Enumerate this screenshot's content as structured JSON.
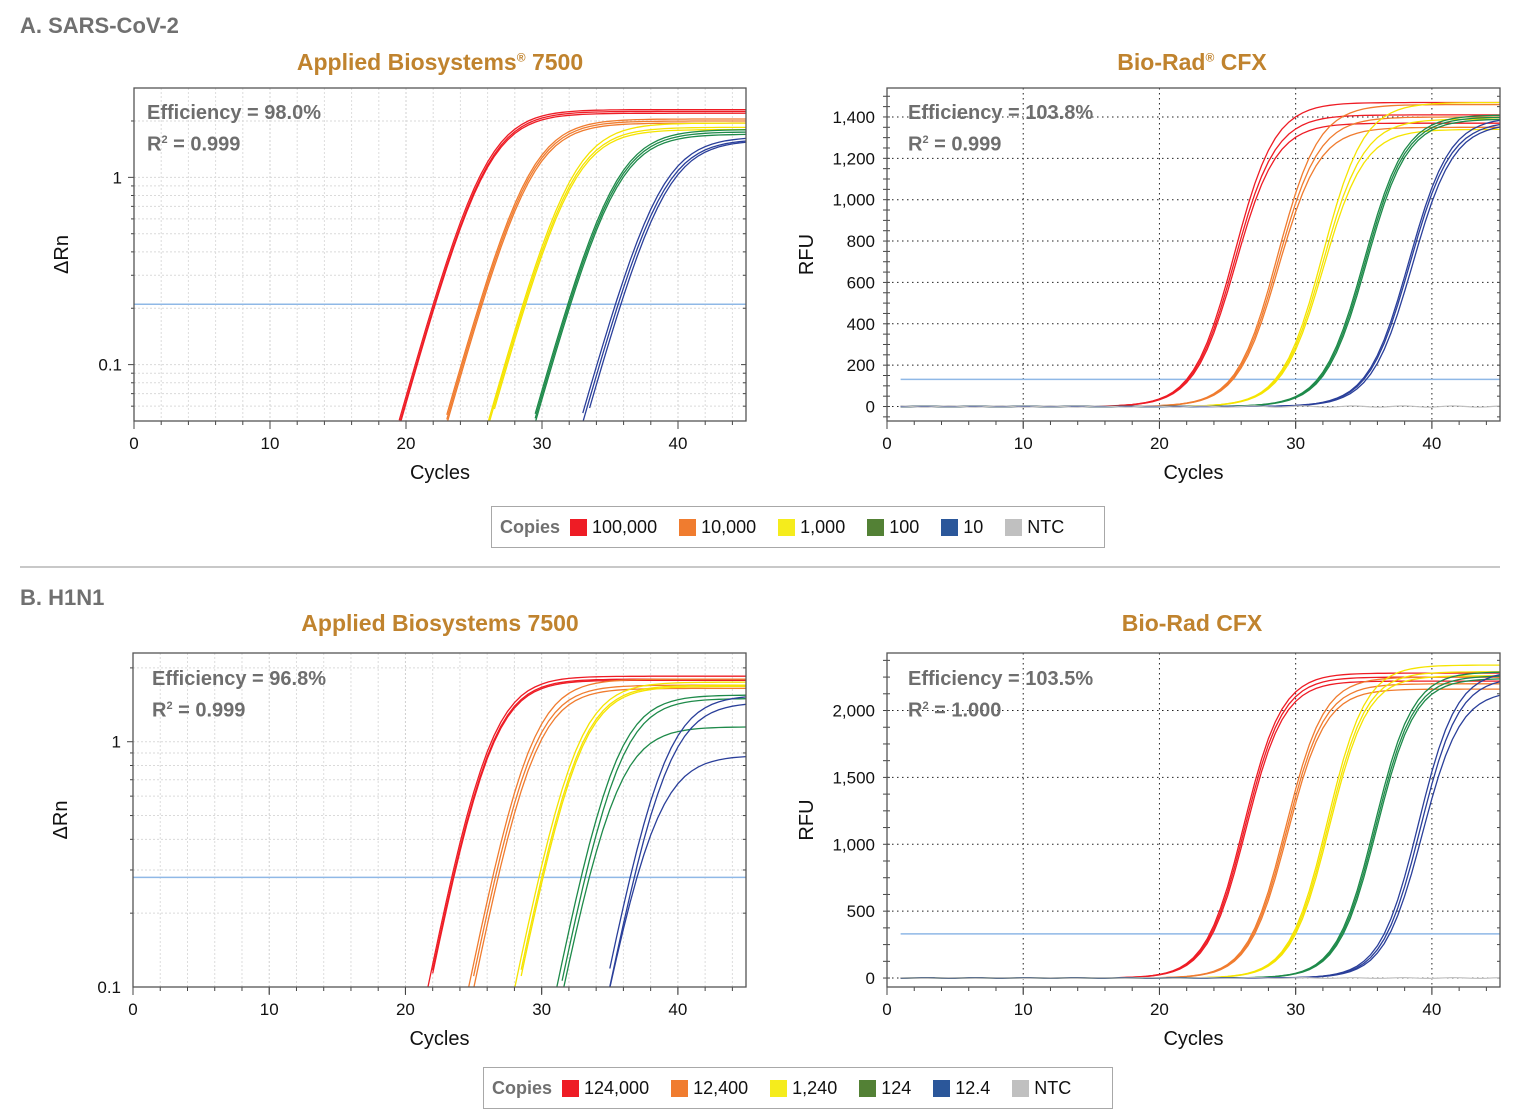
{
  "sections": [
    {
      "label": "A. SARS-CoV-2"
    },
    {
      "label": "B. H1N1"
    }
  ],
  "legends": [
    {
      "title": "Copies",
      "items": [
        {
          "label": "100,000",
          "color": "#ee1c25"
        },
        {
          "label": "10,000",
          "color": "#f07c2f"
        },
        {
          "label": "1,000",
          "color": "#f5ec1c"
        },
        {
          "label": "100",
          "color": "#538135"
        },
        {
          "label": "10",
          "color": "#2b579a"
        },
        {
          "label": "NTC",
          "color": "#c0c0c0"
        }
      ]
    },
    {
      "title": "Copies",
      "items": [
        {
          "label": "124,000",
          "color": "#ee1c25"
        },
        {
          "label": "12,400",
          "color": "#f07c2f"
        },
        {
          "label": "1,240",
          "color": "#f5ec1c"
        },
        {
          "label": "124",
          "color": "#538135"
        },
        {
          "label": "12.4",
          "color": "#2b579a"
        },
        {
          "label": "NTC",
          "color": "#c0c0c0"
        }
      ]
    }
  ],
  "chart_data": [
    {
      "type": "line",
      "title": "Applied Biosystems",
      "title_mark": "®",
      "title_suffix": " 7500",
      "efficiency": "Efficiency = 98.0%",
      "r2_label": "R",
      "r2_value": " = 0.999",
      "xlabel": "Cycles",
      "ylabel": "ΔRn",
      "yscale": "log",
      "xlim": [
        0,
        45
      ],
      "ylim": [
        0.05,
        3
      ],
      "xticks": [
        "0",
        "10",
        "20",
        "30",
        "40"
      ],
      "yticks": [
        "0.1",
        "1"
      ],
      "threshold": 0.21,
      "series": [
        {
          "color": "#ee1c25",
          "ct": [
            22.0,
            22.1,
            22.15
          ],
          "plateau": [
            2.3,
            2.25,
            2.2
          ]
        },
        {
          "color": "#f07c2f",
          "ct": [
            25.4,
            25.5,
            25.6
          ],
          "plateau": [
            2.05,
            2.0,
            1.95
          ]
        },
        {
          "color": "#f5e400",
          "ct": [
            28.6,
            28.7,
            28.8
          ],
          "plateau": [
            1.95,
            1.85,
            1.8
          ]
        },
        {
          "color": "#1e8a4a",
          "ct": [
            31.9,
            32.0,
            32.1
          ],
          "plateau": [
            1.8,
            1.75,
            1.7
          ]
        },
        {
          "color": "#2a3f9a",
          "ct": [
            35.4,
            35.6,
            35.8
          ],
          "plateau": [
            1.65,
            1.6,
            1.58
          ]
        }
      ]
    },
    {
      "type": "line",
      "title": "Bio-Rad",
      "title_mark": "®",
      "title_suffix": " CFX",
      "efficiency": "Efficiency = 103.8%",
      "r2_label": "R",
      "r2_value": " = 0.999",
      "xlabel": "Cycles",
      "ylabel": "RFU",
      "yscale": "linear",
      "xlim": [
        0,
        45
      ],
      "ylim": [
        -70,
        1540
      ],
      "xticks": [
        "0",
        "10",
        "20",
        "30",
        "40"
      ],
      "yticks": [
        "0",
        "200",
        "400",
        "600",
        "800",
        "1,000",
        "1,200",
        "1,400"
      ],
      "threshold": 131,
      "series": [
        {
          "color": "#ee1c25",
          "ct": [
            22.0,
            22.1,
            22.2
          ],
          "plateau": [
            1470,
            1410,
            1370
          ]
        },
        {
          "color": "#f07c2f",
          "ct": [
            25.2,
            25.3,
            25.4
          ],
          "plateau": [
            1460,
            1400,
            1350
          ]
        },
        {
          "color": "#f5e400",
          "ct": [
            28.5,
            28.6,
            28.7
          ],
          "plateau": [
            1470,
            1390,
            1340
          ]
        },
        {
          "color": "#1e8a4a",
          "ct": [
            31.6,
            31.7,
            31.8
          ],
          "plateau": [
            1410,
            1400,
            1390
          ]
        },
        {
          "color": "#2a3f9a",
          "ct": [
            34.9,
            35.0,
            35.2
          ],
          "plateau": [
            1400,
            1380,
            1370
          ]
        },
        {
          "color": "#c0c0c0",
          "ct": [],
          "plateau": [
            0
          ]
        }
      ]
    },
    {
      "type": "line",
      "title": "Applied Biosystems 7500",
      "title_mark": "",
      "title_suffix": "",
      "efficiency": "Efficiency = 96.8%",
      "r2_label": "R",
      "r2_value": " = 0.999",
      "xlabel": "Cycles",
      "ylabel": "ΔRn",
      "yscale": "log",
      "xlim": [
        0,
        45
      ],
      "ylim": [
        0.1,
        2.3
      ],
      "xticks": [
        "0",
        "10",
        "20",
        "30",
        "40"
      ],
      "yticks": [
        "0.1",
        "1"
      ],
      "threshold": 0.28,
      "series": [
        {
          "color": "#ee1c25",
          "ct": [
            23.4,
            23.5,
            23.55
          ],
          "plateau": [
            1.85,
            1.8,
            1.78
          ]
        },
        {
          "color": "#f07c2f",
          "ct": [
            26.4,
            26.6,
            26.8
          ],
          "plateau": [
            1.8,
            1.7,
            1.65
          ]
        },
        {
          "color": "#f5e400",
          "ct": [
            29.8,
            30.0,
            30.1
          ],
          "plateau": [
            1.75,
            1.7,
            1.68
          ]
        },
        {
          "color": "#1e8a4a",
          "ct": [
            32.9,
            33.2,
            33.5
          ],
          "plateau": [
            1.55,
            1.5,
            1.15
          ]
        },
        {
          "color": "#2a3f9a",
          "ct": [
            36.5,
            36.8,
            37.0
          ],
          "plateau": [
            1.55,
            1.45,
            0.88
          ]
        }
      ]
    },
    {
      "type": "line",
      "title": "Bio-Rad CFX",
      "title_mark": "",
      "title_suffix": "",
      "efficiency": "Efficiency = 103.5%",
      "r2_label": "R",
      "r2_value": " = 1.000",
      "xlabel": "Cycles",
      "ylabel": "RFU",
      "yscale": "linear",
      "xlim": [
        0,
        45
      ],
      "ylim": [
        -67,
        2430
      ],
      "xticks": [
        "0",
        "10",
        "20",
        "30",
        "40"
      ],
      "yticks": [
        "0",
        "500",
        "1,000",
        "1,500",
        "2,000"
      ],
      "threshold": 330,
      "series": [
        {
          "color": "#ee1c25",
          "ct": [
            23.7,
            23.8,
            23.9
          ],
          "plateau": [
            2280,
            2250,
            2220
          ]
        },
        {
          "color": "#f07c2f",
          "ct": [
            26.8,
            26.9,
            27.0
          ],
          "plateau": [
            2250,
            2200,
            2160
          ]
        },
        {
          "color": "#f5e400",
          "ct": [
            29.8,
            29.9,
            30.0
          ],
          "plateau": [
            2340,
            2290,
            2260
          ]
        },
        {
          "color": "#1e8a4a",
          "ct": [
            33.3,
            33.4,
            33.5
          ],
          "plateau": [
            2290,
            2260,
            2240
          ]
        },
        {
          "color": "#2a3f9a",
          "ct": [
            36.5,
            36.7,
            36.9
          ],
          "plateau": [
            2300,
            2250,
            2150
          ]
        },
        {
          "color": "#c0c0c0",
          "ct": [],
          "plateau": [
            0
          ]
        }
      ]
    }
  ]
}
